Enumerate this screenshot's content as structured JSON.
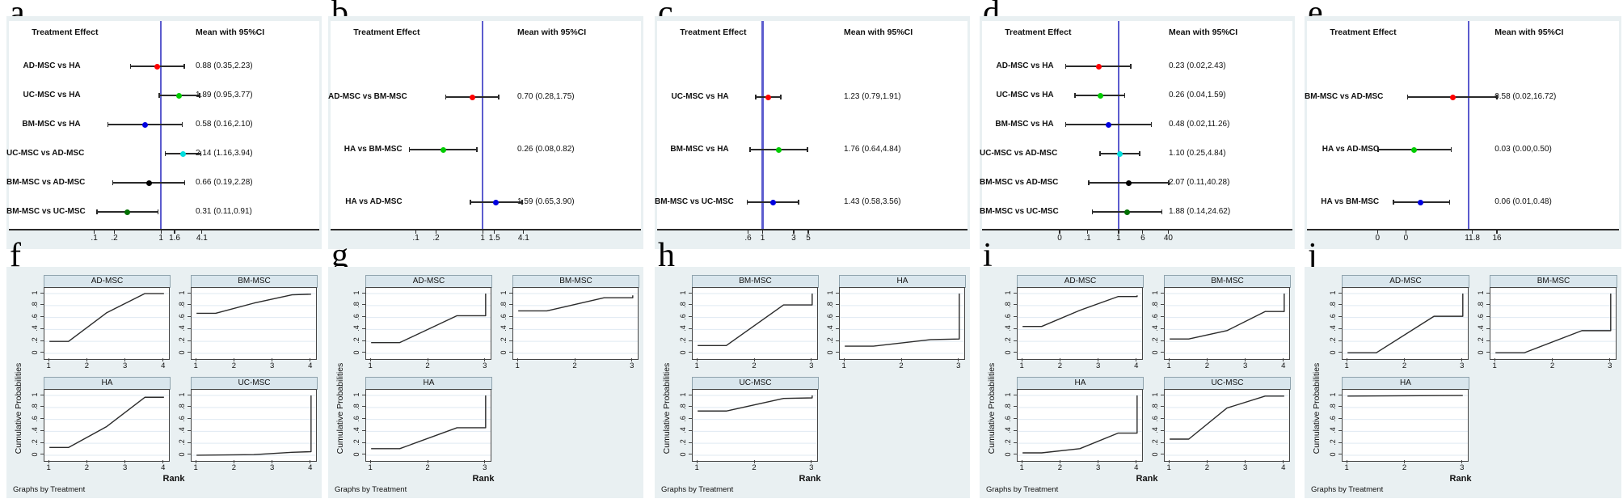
{
  "figure": {
    "letters": [
      "a",
      "b",
      "c",
      "d",
      "e",
      "f",
      "g",
      "h",
      "i",
      "j"
    ],
    "forest_header_left": "Treatment Effect",
    "forest_header_right": "Mean with 95%CI",
    "rank_ylabel": "Cumulative Probabilities",
    "rank_xlabel": "Rank",
    "rank_note": "Graphs by Treatment",
    "colors": {
      "panel_background": "#e9f0f2",
      "plot_background": "#ffffff",
      "reference_line": "#5c5cce",
      "ci_line": "#2a2a2a",
      "subplot_title_band": "#d9e6ed",
      "gridline": "#dfe9f2",
      "curve": "#2b2b2b",
      "dot_red": "#ff0000",
      "dot_green": "#00cc00",
      "dot_blue": "#0000e0",
      "dot_cyan": "#00dede",
      "dot_black": "#000000",
      "dot_darkgreen": "#007000"
    }
  },
  "chart_data": [
    {
      "id": "a",
      "type": "forest",
      "title_left": "Treatment Effect",
      "title_right": "Mean with 95%CI",
      "xline": {
        "value": 1,
        "pct": 49.0
      },
      "ticks": [
        {
          "label": ".1",
          "pct": 27.5
        },
        {
          "label": ".2",
          "pct": 34.0
        },
        {
          "label": "1",
          "pct": 49.0
        },
        {
          "label": "1.6",
          "pct": 53.4
        },
        {
          "label": "4.1",
          "pct": 62.2
        }
      ],
      "rows": [
        {
          "label": "AD-MSC vs HA",
          "text": "0.88 (0.35,2.23)",
          "mean": 0.88,
          "lo": 0.35,
          "hi": 2.23,
          "color": "#ff0000",
          "pm": 47.8,
          "pl": 39.2,
          "ph": 56.5
        },
        {
          "label": "UC-MSC vs HA",
          "text": "1.89 (0.95,3.77)",
          "mean": 1.89,
          "lo": 0.95,
          "hi": 3.77,
          "color": "#00cc00",
          "pm": 54.9,
          "pl": 48.5,
          "ph": 61.4
        },
        {
          "label": "BM-MSC vs HA",
          "text": "0.58 (0.16,2.10)",
          "mean": 0.58,
          "lo": 0.16,
          "hi": 2.1,
          "color": "#0000e0",
          "pm": 43.9,
          "pl": 31.9,
          "ph": 55.9
        },
        {
          "label": "UC-MSC vs AD-MSC",
          "text": "2.14 (1.16,3.94)",
          "mean": 2.14,
          "lo": 1.16,
          "hi": 3.94,
          "color": "#00dede",
          "pm": 56.1,
          "pl": 50.4,
          "ph": 61.8
        },
        {
          "label": "BM-MSC vs AD-MSC",
          "text": "0.66 (0.19,2.28)",
          "mean": 0.66,
          "lo": 0.19,
          "hi": 2.28,
          "color": "#000000",
          "pm": 45.1,
          "pl": 33.5,
          "ph": 56.7
        },
        {
          "label": "BM-MSC vs UC-MSC",
          "text": "0.31 (0.11,0.91)",
          "mean": 0.31,
          "lo": 0.11,
          "hi": 0.91,
          "color": "#007000",
          "pm": 38.1,
          "pl": 28.4,
          "ph": 48.1
        }
      ]
    },
    {
      "id": "b",
      "type": "forest",
      "title_left": "Treatment Effect",
      "title_right": "Mean with 95%CI",
      "xline": {
        "value": 1,
        "pct": 49.0
      },
      "ticks": [
        {
          "label": ".1",
          "pct": 27.5
        },
        {
          "label": ".2",
          "pct": 34.0
        },
        {
          "label": "1",
          "pct": 49.0
        },
        {
          "label": "1.5",
          "pct": 52.8
        },
        {
          "label": "4.1",
          "pct": 62.2
        }
      ],
      "rows": [
        {
          "label": "AD-MSC vs BM-MSC",
          "text": "0.70 (0.28,1.75)",
          "mean": 0.7,
          "lo": 0.28,
          "hi": 1.75,
          "color": "#ff0000",
          "pm": 45.7,
          "pl": 37.1,
          "ph": 54.2
        },
        {
          "label": "HA vs BM-MSC",
          "text": "0.26 (0.08,0.82)",
          "mean": 0.26,
          "lo": 0.08,
          "hi": 0.82,
          "color": "#00cc00",
          "pm": 36.4,
          "pl": 25.4,
          "ph": 47.1
        },
        {
          "label": "HA vs AD-MSC",
          "text": "1.59 (0.65,3.90)",
          "mean": 1.59,
          "lo": 0.65,
          "hi": 3.9,
          "color": "#0000e0",
          "pm": 53.3,
          "pl": 45.0,
          "ph": 61.7
        }
      ]
    },
    {
      "id": "c",
      "type": "forest",
      "title_left": "Treatment Effect",
      "title_right": "Mean with 95%CI",
      "xline": {
        "value": 1,
        "pct": 34.0
      },
      "ticks": [
        {
          "label": ".6",
          "pct": 29.3
        },
        {
          "label": "1",
          "pct": 34.0
        },
        {
          "label": "3",
          "pct": 44.0
        },
        {
          "label": "5",
          "pct": 48.7
        }
      ],
      "rows": [
        {
          "label": "UC-MSC vs HA",
          "text": "1.23 (0.79,1.91)",
          "mean": 1.23,
          "lo": 0.79,
          "hi": 1.91,
          "color": "#ff0000",
          "pm": 35.9,
          "pl": 31.8,
          "ph": 39.9
        },
        {
          "label": "BM-MSC vs HA",
          "text": "1.76 (0.64,4.84)",
          "mean": 1.76,
          "lo": 0.64,
          "hi": 4.84,
          "color": "#00cc00",
          "pm": 39.2,
          "pl": 29.9,
          "ph": 48.4
        },
        {
          "label": "BM-MSC vs UC-MSC",
          "text": "1.43 (0.58,3.56)",
          "mean": 1.43,
          "lo": 0.58,
          "hi": 3.56,
          "color": "#0000e0",
          "pm": 37.3,
          "pl": 29.0,
          "ph": 45.6
        }
      ]
    },
    {
      "id": "d",
      "type": "forest",
      "title_left": "Treatment Effect",
      "title_right": "Mean with 95%CI",
      "xline": {
        "value": 1,
        "pct": 44.0
      },
      "ticks": [
        {
          "label": "0",
          "pct": 25.0
        },
        {
          "label": ".1",
          "pct": 34.0
        },
        {
          "label": "1",
          "pct": 44.0
        },
        {
          "label": "6",
          "pct": 51.8
        },
        {
          "label": "40",
          "pct": 60.0
        }
      ],
      "rows": [
        {
          "label": "AD-MSC vs HA",
          "text": "0.23 (0.02,2.43)",
          "mean": 0.23,
          "lo": 0.02,
          "hi": 2.43,
          "color": "#ff0000",
          "pm": 37.6,
          "pl": 27.0,
          "ph": 47.9
        },
        {
          "label": "UC-MSC vs HA",
          "text": "0.26 (0.04,1.59)",
          "mean": 0.26,
          "lo": 0.04,
          "hi": 1.59,
          "color": "#00cc00",
          "pm": 38.2,
          "pl": 30.0,
          "ph": 46.0
        },
        {
          "label": "BM-MSC vs HA",
          "text": "0.48 (0.02,11.26)",
          "mean": 0.48,
          "lo": 0.02,
          "hi": 11.26,
          "color": "#0000e0",
          "pm": 40.8,
          "pl": 27.0,
          "ph": 54.5
        },
        {
          "label": "UC-MSC vs AD-MSC",
          "text": "1.10 (0.25,4.84)",
          "mean": 1.1,
          "lo": 0.25,
          "hi": 4.84,
          "color": "#00dede",
          "pm": 44.4,
          "pl": 38.0,
          "ph": 50.8
        },
        {
          "label": "BM-MSC vs AD-MSC",
          "text": "2.07 (0.11,40.28)",
          "mean": 2.07,
          "lo": 0.11,
          "hi": 40.28,
          "color": "#000000",
          "pm": 47.2,
          "pl": 34.4,
          "ph": 60.1
        },
        {
          "label": "BM-MSC vs UC-MSC",
          "text": "1.88 (0.14,24.62)",
          "mean": 1.88,
          "lo": 0.14,
          "hi": 24.62,
          "color": "#007000",
          "pm": 46.7,
          "pl": 35.5,
          "ph": 57.9
        }
      ]
    },
    {
      "id": "e",
      "type": "forest",
      "title_left": "Treatment Effect",
      "title_right": "Mean with 95%CI",
      "xline": {
        "value": 1,
        "pct": 51.8
      },
      "ticks": [
        {
          "label": "0",
          "pct": 22.6
        },
        {
          "label": "0",
          "pct": 31.7
        },
        {
          "label": "11.8",
          "pct": 53.0
        },
        {
          "label": "16",
          "pct": 60.9
        }
      ],
      "rows": [
        {
          "label": "BM-MSC vs AD-MSC",
          "text": "0.58 (0.02,16.72)",
          "mean": 0.58,
          "lo": 0.02,
          "hi": 16.72,
          "color": "#ff0000",
          "pm": 46.7,
          "pl": 32.2,
          "ph": 60.9
        },
        {
          "label": "HA vs AD-MSC",
          "text": "0.03 (0.00,0.50)",
          "mean": 0.03,
          "lo": 0.0,
          "hi": 0.5,
          "color": "#00cc00",
          "pm": 34.3,
          "pl": 22.8,
          "ph": 46.2
        },
        {
          "label": "HA vs BM-MSC",
          "text": "0.06 (0.01,0.48)",
          "mean": 0.06,
          "lo": 0.01,
          "hi": 0.48,
          "color": "#0000e0",
          "pm": 36.5,
          "pl": 27.7,
          "ph": 45.7
        }
      ]
    },
    {
      "id": "f",
      "type": "rank",
      "xmax": 4,
      "xticks": [
        "1",
        "2",
        "3",
        "4"
      ],
      "yticks": [
        "0",
        ".2",
        ".4",
        ".6",
        ".8",
        "1"
      ],
      "ylabel": "Cumulative Probabilities",
      "xlabel": "Rank",
      "note": "Graphs by Treatment",
      "subplots": [
        {
          "title": "AD-MSC",
          "points": [
            [
              1,
              0.2
            ],
            [
              1.5,
              0.2
            ],
            [
              2.5,
              0.68
            ],
            [
              3.5,
              1
            ],
            [
              4,
              1
            ]
          ]
        },
        {
          "title": "BM-MSC",
          "points": [
            [
              1,
              0.67
            ],
            [
              1.5,
              0.67
            ],
            [
              2.5,
              0.84
            ],
            [
              3.5,
              0.98
            ],
            [
              4,
              0.99
            ]
          ]
        },
        {
          "title": "HA",
          "points": [
            [
              1,
              0.13
            ],
            [
              1.5,
              0.13
            ],
            [
              2.5,
              0.48
            ],
            [
              3.5,
              0.97
            ],
            [
              4,
              0.97
            ]
          ]
        },
        {
          "title": "UC-MSC",
          "points": [
            [
              1,
              0
            ],
            [
              2.5,
              0.01
            ],
            [
              3.5,
              0.05
            ],
            [
              4,
              0.06
            ],
            [
              4,
              1
            ]
          ]
        }
      ]
    },
    {
      "id": "g",
      "type": "rank",
      "xmax": 3,
      "xticks": [
        "1",
        "2",
        "3"
      ],
      "yticks": [
        "0",
        ".2",
        ".4",
        ".6",
        ".8",
        "1"
      ],
      "ylabel": "Cumulative Probabilities",
      "xlabel": "Rank",
      "note": "Graphs by Treatment",
      "subplots": [
        {
          "title": "AD-MSC",
          "points": [
            [
              1,
              0.18
            ],
            [
              1.5,
              0.18
            ],
            [
              2.5,
              0.63
            ],
            [
              3,
              0.63
            ],
            [
              3,
              1
            ]
          ]
        },
        {
          "title": "BM-MSC",
          "points": [
            [
              1,
              0.71
            ],
            [
              1.5,
              0.71
            ],
            [
              2.5,
              0.93
            ],
            [
              3,
              0.93
            ],
            [
              3,
              0.97
            ]
          ]
        },
        {
          "title": "HA",
          "points": [
            [
              1,
              0.11
            ],
            [
              1.5,
              0.11
            ],
            [
              2.5,
              0.46
            ],
            [
              3,
              0.46
            ],
            [
              3,
              1
            ]
          ]
        }
      ]
    },
    {
      "id": "h",
      "type": "rank",
      "xmax": 3,
      "xticks": [
        "1",
        "2",
        "3"
      ],
      "yticks": [
        "0",
        ".2",
        ".4",
        ".6",
        ".8",
        "1"
      ],
      "ylabel": "Cumulative Probabilities",
      "xlabel": "Rank",
      "note": "Graphs by Treatment",
      "subplots": [
        {
          "title": "BM-MSC",
          "points": [
            [
              1,
              0.13
            ],
            [
              1.5,
              0.13
            ],
            [
              2.5,
              0.81
            ],
            [
              3,
              0.81
            ],
            [
              3,
              1
            ]
          ]
        },
        {
          "title": "HA",
          "points": [
            [
              1,
              0.12
            ],
            [
              1.5,
              0.12
            ],
            [
              2.5,
              0.23
            ],
            [
              3,
              0.24
            ],
            [
              3,
              1
            ]
          ]
        },
        {
          "title": "UC-MSC",
          "points": [
            [
              1,
              0.74
            ],
            [
              1.5,
              0.74
            ],
            [
              2.5,
              0.95
            ],
            [
              3,
              0.96
            ],
            [
              3,
              1
            ]
          ]
        }
      ]
    },
    {
      "id": "i",
      "type": "rank",
      "xmax": 4,
      "xticks": [
        "1",
        "2",
        "3",
        "4"
      ],
      "yticks": [
        "0",
        ".2",
        ".4",
        ".6",
        ".8",
        "1"
      ],
      "ylabel": "Cumulative Probabilities",
      "xlabel": "Rank",
      "note": "Graphs by Treatment",
      "subplots": [
        {
          "title": "AD-MSC",
          "points": [
            [
              1,
              0.45
            ],
            [
              1.5,
              0.45
            ],
            [
              2.5,
              0.72
            ],
            [
              3.5,
              0.95
            ],
            [
              4,
              0.95
            ],
            [
              4,
              0.97
            ]
          ]
        },
        {
          "title": "BM-MSC",
          "points": [
            [
              1,
              0.24
            ],
            [
              1.5,
              0.24
            ],
            [
              2.5,
              0.38
            ],
            [
              3.5,
              0.7
            ],
            [
              4,
              0.7
            ],
            [
              4,
              1
            ]
          ]
        },
        {
          "title": "HA",
          "points": [
            [
              1,
              0.04
            ],
            [
              1.5,
              0.04
            ],
            [
              2.5,
              0.11
            ],
            [
              3.5,
              0.37
            ],
            [
              4,
              0.37
            ],
            [
              4,
              1
            ]
          ]
        },
        {
          "title": "UC-MSC",
          "points": [
            [
              1,
              0.27
            ],
            [
              1.5,
              0.27
            ],
            [
              2.5,
              0.79
            ],
            [
              3.5,
              0.99
            ],
            [
              4,
              0.99
            ]
          ]
        }
      ]
    },
    {
      "id": "j",
      "type": "rank",
      "xmax": 3,
      "xticks": [
        "1",
        "2",
        "3"
      ],
      "yticks": [
        "0",
        ".2",
        ".4",
        ".6",
        ".8",
        "1"
      ],
      "ylabel": "Cumulative Probabilities",
      "xlabel": "Rank",
      "note": "Graphs by Treatment",
      "subplots": [
        {
          "title": "AD-MSC",
          "points": [
            [
              1,
              0.01
            ],
            [
              1.5,
              0.01
            ],
            [
              2.5,
              0.62
            ],
            [
              3,
              0.62
            ],
            [
              3,
              1
            ]
          ]
        },
        {
          "title": "BM-MSC",
          "points": [
            [
              1,
              0.01
            ],
            [
              1.5,
              0.01
            ],
            [
              2.5,
              0.38
            ],
            [
              3,
              0.38
            ],
            [
              3,
              1
            ]
          ]
        },
        {
          "title": "HA",
          "points": [
            [
              1,
              0.99
            ],
            [
              3,
              1
            ]
          ]
        }
      ]
    }
  ]
}
